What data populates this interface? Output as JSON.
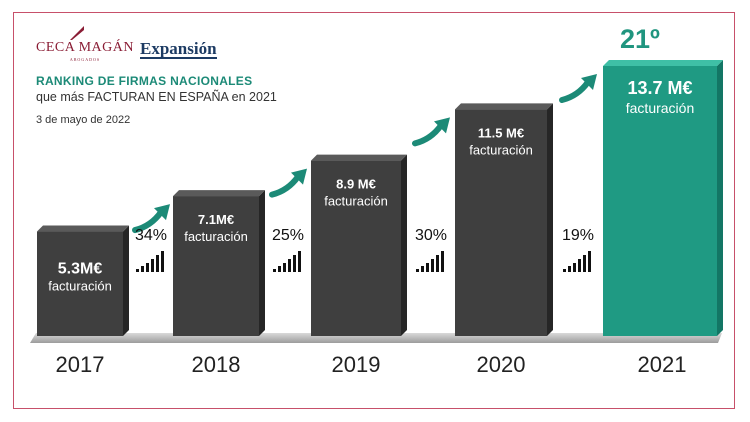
{
  "header": {
    "logo_ceca": "CECA MAGÁN",
    "logo_ceca_sub": "ABOGADOS",
    "logo_expansion": "Expansión",
    "title": "RANKING DE FIRMAS NACIONALES",
    "subtitle": "que más FACTURAN EN ESPAÑA en 2021",
    "date": "3 de mayo de 2022",
    "rank": "21º"
  },
  "colors": {
    "dark_bar": "#3f3f3f",
    "highlight_bar": "#1f9a83",
    "accent": "#1c8a77",
    "frame": "#c7506a"
  },
  "chart_data": {
    "type": "bar",
    "categories": [
      "2017",
      "2018",
      "2019",
      "2020",
      "2021"
    ],
    "values": [
      5.3,
      7.1,
      8.9,
      11.5,
      13.7
    ],
    "value_labels": [
      "5.3M€",
      "7.1M€",
      "8.9 M€",
      "11.5 M€",
      "13.7 M€"
    ],
    "caption": "facturación",
    "growth": [
      "34%",
      "25%",
      "30%",
      "19%"
    ],
    "highlight_index": 4,
    "ylim": [
      0,
      13.7
    ]
  }
}
